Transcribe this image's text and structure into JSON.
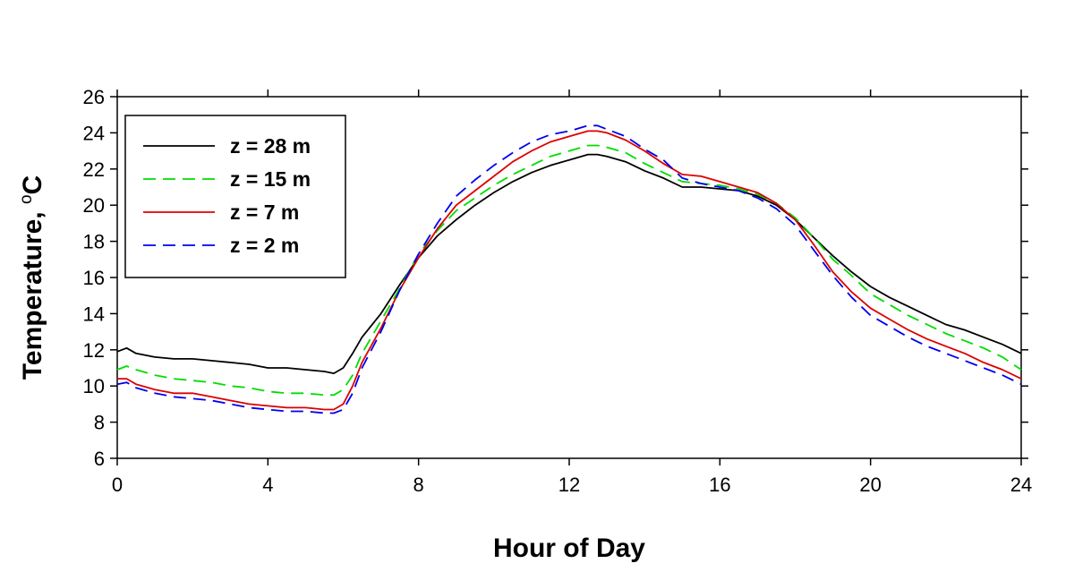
{
  "chart_data": {
    "type": "line",
    "xlabel": "Hour of Day",
    "ylabel_main": "Temperature, ",
    "ylabel_unit_sup": "o",
    "ylabel_unit": "C",
    "xlim": [
      0,
      24
    ],
    "ylim": [
      6,
      26
    ],
    "xticks": [
      0,
      4,
      8,
      12,
      16,
      20,
      24
    ],
    "yticks": [
      6,
      8,
      10,
      12,
      14,
      16,
      18,
      20,
      22,
      24,
      26
    ],
    "grid": false,
    "legend_position": "top-left",
    "series": [
      {
        "name": "z = 28 m",
        "color": "#000000",
        "dash": "solid",
        "x": [
          0,
          0.25,
          0.5,
          1,
          1.5,
          2,
          2.5,
          3,
          3.5,
          4,
          4.5,
          5,
          5.5,
          5.75,
          6,
          6.25,
          6.5,
          7,
          7.5,
          8,
          8.5,
          9,
          9.5,
          10,
          10.5,
          11,
          11.5,
          12,
          12.5,
          12.75,
          13,
          13.5,
          14,
          14.5,
          15,
          15.5,
          16,
          16.5,
          17,
          17.5,
          18,
          18.5,
          19,
          19.5,
          20,
          20.5,
          21,
          21.5,
          22,
          22.5,
          23,
          23.5,
          24
        ],
        "y": [
          11.9,
          12.1,
          11.8,
          11.6,
          11.5,
          11.5,
          11.4,
          11.3,
          11.2,
          11.0,
          11.0,
          10.9,
          10.8,
          10.7,
          11.0,
          11.8,
          12.7,
          14.0,
          15.6,
          17.1,
          18.3,
          19.2,
          20.0,
          20.7,
          21.3,
          21.8,
          22.2,
          22.5,
          22.8,
          22.8,
          22.7,
          22.4,
          21.9,
          21.5,
          21.0,
          21.0,
          20.9,
          20.8,
          20.5,
          20.0,
          19.2,
          18.2,
          17.2,
          16.3,
          15.5,
          14.9,
          14.4,
          13.9,
          13.4,
          13.1,
          12.7,
          12.3,
          11.8
        ]
      },
      {
        "name": "z = 15 m",
        "color": "#00dd00",
        "dash": "dashed",
        "x": [
          0,
          0.25,
          0.5,
          1,
          1.5,
          2,
          2.5,
          3,
          3.5,
          4,
          4.5,
          5,
          5.5,
          5.75,
          6,
          6.25,
          6.5,
          7,
          7.5,
          8,
          8.5,
          9,
          9.5,
          10,
          10.5,
          11,
          11.5,
          12,
          12.5,
          12.75,
          13,
          13.5,
          14,
          14.5,
          15,
          15.5,
          16,
          16.5,
          17,
          17.5,
          18,
          18.5,
          19,
          19.5,
          20,
          20.5,
          21,
          21.5,
          22,
          22.5,
          23,
          23.5,
          24
        ],
        "y": [
          10.9,
          11.1,
          10.9,
          10.6,
          10.4,
          10.3,
          10.2,
          10.0,
          9.9,
          9.7,
          9.6,
          9.6,
          9.5,
          9.5,
          9.8,
          10.6,
          11.8,
          13.6,
          15.4,
          17.3,
          18.6,
          19.7,
          20.4,
          21.1,
          21.7,
          22.2,
          22.7,
          23.0,
          23.3,
          23.3,
          23.2,
          22.9,
          22.3,
          21.8,
          21.3,
          21.2,
          21.1,
          20.9,
          20.6,
          20.1,
          19.3,
          18.2,
          17.0,
          16.1,
          15.1,
          14.5,
          13.9,
          13.4,
          12.9,
          12.5,
          12.1,
          11.6,
          10.9
        ]
      },
      {
        "name": "z = 7 m",
        "color": "#dd0000",
        "dash": "solid",
        "x": [
          0,
          0.25,
          0.5,
          1,
          1.5,
          2,
          2.5,
          3,
          3.5,
          4,
          4.5,
          5,
          5.5,
          5.75,
          6,
          6.25,
          6.5,
          7,
          7.5,
          8,
          8.5,
          9,
          9.5,
          10,
          10.5,
          11,
          11.5,
          12,
          12.5,
          12.75,
          13,
          13.5,
          14,
          14.5,
          15,
          15.5,
          16,
          16.5,
          17,
          17.5,
          18,
          18.5,
          19,
          19.5,
          20,
          20.5,
          21,
          21.5,
          22,
          22.5,
          23,
          23.5,
          24
        ],
        "y": [
          10.4,
          10.4,
          10.1,
          9.8,
          9.6,
          9.6,
          9.4,
          9.2,
          9.0,
          8.9,
          8.8,
          8.8,
          8.7,
          8.7,
          9.0,
          10.0,
          11.3,
          13.2,
          15.3,
          17.1,
          18.7,
          20.0,
          20.8,
          21.6,
          22.4,
          23.0,
          23.5,
          23.8,
          24.1,
          24.1,
          24.0,
          23.6,
          23.0,
          22.3,
          21.7,
          21.6,
          21.3,
          21.0,
          20.7,
          20.1,
          19.2,
          17.8,
          16.3,
          15.2,
          14.3,
          13.7,
          13.1,
          12.6,
          12.2,
          11.8,
          11.3,
          10.9,
          10.4
        ]
      },
      {
        "name": "z = 2 m",
        "color": "#0000ee",
        "dash": "dashed",
        "x": [
          0,
          0.25,
          0.5,
          1,
          1.5,
          2,
          2.5,
          3,
          3.5,
          4,
          4.5,
          5,
          5.5,
          5.75,
          6,
          6.25,
          6.5,
          7,
          7.5,
          8,
          8.5,
          9,
          9.5,
          10,
          10.5,
          11,
          11.5,
          12,
          12.5,
          12.75,
          13,
          13.5,
          14,
          14.5,
          15,
          15.5,
          16,
          16.5,
          17,
          17.5,
          18,
          18.5,
          19,
          19.5,
          20,
          20.5,
          21,
          21.5,
          22,
          22.5,
          23,
          23.5,
          24
        ],
        "y": [
          10.1,
          10.2,
          9.9,
          9.6,
          9.4,
          9.3,
          9.2,
          9.0,
          8.8,
          8.7,
          8.6,
          8.6,
          8.5,
          8.5,
          8.7,
          9.6,
          11.0,
          13.0,
          15.3,
          17.3,
          19.0,
          20.5,
          21.4,
          22.2,
          22.9,
          23.5,
          23.9,
          24.1,
          24.4,
          24.4,
          24.2,
          23.8,
          23.1,
          22.5,
          21.5,
          21.2,
          21.0,
          20.8,
          20.4,
          19.8,
          18.9,
          17.5,
          16.1,
          14.9,
          13.9,
          13.3,
          12.7,
          12.2,
          11.8,
          11.4,
          11.0,
          10.6,
          10.1
        ]
      }
    ]
  }
}
